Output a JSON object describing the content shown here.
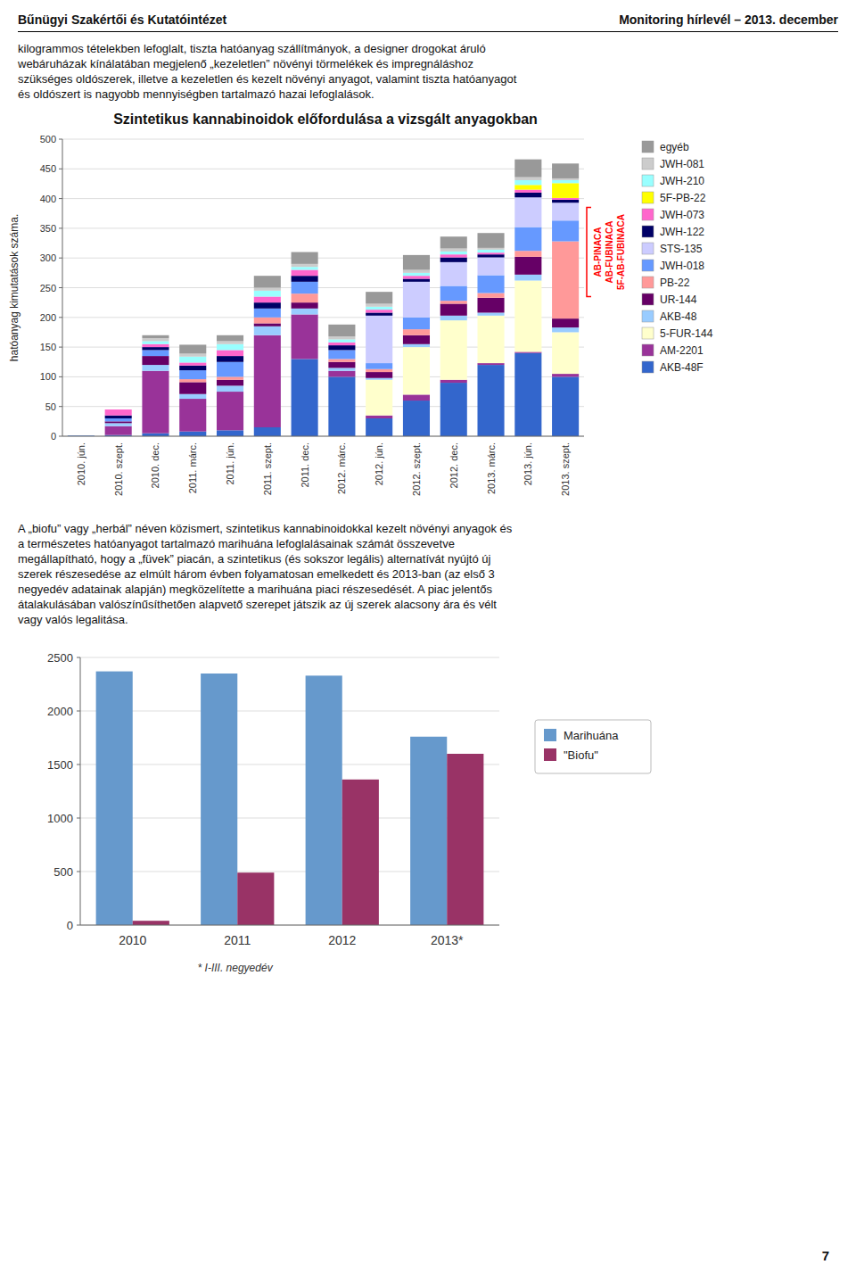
{
  "header_left": "Bűnügyi Szakértői és Kutatóintézet",
  "header_right": "Monitoring hírlevél – 2013. december",
  "body_text_lines": [
    "kilogrammos tételekben lefoglalt, tiszta hatóanyag szállítmányok, a designer drogokat áruló",
    "webáruházak kínálatában megjelenő „kezeletlen” növényi törmelékek és impregnáláshoz",
    "szükséges oldószerek, illetve a kezeletlen és kezelt növényi anyagot, valamint tiszta hatóanyagot",
    "és oldószert is nagyobb mennyiségben tartalmazó hazai lefoglalások."
  ],
  "body_text2_lines": [
    "A „biofu” vagy „herbál” néven közismert, szintetikus kannabinoidokkal kezelt növényi anyagok és",
    "a természetes hatóanyagot tartalmazó marihuána lefoglalásainak számát összevetve",
    "megállapítható, hogy a „füvek” piacán, a szintetikus (és sokszor legális) alternatívát nyújtó új",
    "szerek részesedése az elmúlt három évben folyamatosan emelkedett és 2013-ban (az első 3",
    "negyedév adatainak alapján) megközelítette a marihuána piaci részesedését. A piac jelentős",
    "átalakulásában valószínűsíthetően alapvető szerepet játszik az új szerek alacsony ára és vélt",
    "vagy valós legalitása."
  ],
  "page_number": "7",
  "chart_data": [
    {
      "type": "bar",
      "stacked": true,
      "title": "Szintetikus kannabinoidok előfordulása a vizsgált anyagokban",
      "ylabel": "hatóanyag kimutatások száma.",
      "categories": [
        "2010. jún.",
        "2010. szept.",
        "2010. dec.",
        "2011. márc.",
        "2011. jún.",
        "2011. szept.",
        "2011. dec.",
        "2012. márc.",
        "2012. jún.",
        "2012. szept.",
        "2012. dec.",
        "2013. márc.",
        "2013. jún.",
        "2013. szept."
      ],
      "series": [
        {
          "name": "AKB-48F",
          "color": "#3366CC",
          "values": [
            1,
            2,
            5,
            8,
            10,
            15,
            130,
            100,
            30,
            60,
            90,
            120,
            140,
            100
          ]
        },
        {
          "name": "AM-2201",
          "color": "#993399",
          "values": [
            0,
            15,
            105,
            55,
            65,
            155,
            75,
            10,
            5,
            10,
            5,
            3,
            2,
            5
          ]
        },
        {
          "name": "5-FUR-144",
          "color": "#FFFFCC",
          "values": [
            0,
            0,
            0,
            0,
            0,
            0,
            0,
            0,
            60,
            80,
            100,
            80,
            120,
            70
          ]
        },
        {
          "name": "AKB-48",
          "color": "#99CCFF",
          "values": [
            0,
            5,
            10,
            8,
            10,
            15,
            10,
            5,
            3,
            5,
            8,
            5,
            10,
            8
          ]
        },
        {
          "name": "UR-144",
          "color": "#660066",
          "values": [
            0,
            3,
            15,
            20,
            10,
            5,
            10,
            10,
            10,
            15,
            20,
            25,
            30,
            15
          ]
        },
        {
          "name": "PB-22",
          "color": "#FF9999",
          "values": [
            0,
            0,
            0,
            5,
            5,
            10,
            15,
            5,
            5,
            10,
            5,
            8,
            10,
            130
          ]
        },
        {
          "name": "JWH-018",
          "color": "#6699FF",
          "values": [
            0,
            5,
            10,
            15,
            25,
            15,
            20,
            15,
            10,
            20,
            25,
            30,
            40,
            35
          ]
        },
        {
          "name": "STS-135",
          "color": "#CCCCFF",
          "values": [
            0,
            0,
            0,
            0,
            0,
            0,
            0,
            0,
            80,
            60,
            40,
            30,
            50,
            30
          ]
        },
        {
          "name": "JWH-122",
          "color": "#000066",
          "values": [
            0,
            5,
            5,
            8,
            10,
            10,
            10,
            8,
            5,
            5,
            8,
            5,
            8,
            5
          ]
        },
        {
          "name": "JWH-073",
          "color": "#FF66CC",
          "values": [
            0,
            10,
            5,
            5,
            10,
            10,
            10,
            5,
            5,
            5,
            5,
            3,
            5,
            3
          ]
        },
        {
          "name": "5F-PB-22",
          "color": "#FFFF00",
          "values": [
            0,
            0,
            0,
            0,
            0,
            0,
            0,
            0,
            0,
            0,
            0,
            0,
            8,
            25
          ]
        },
        {
          "name": "JWH-210",
          "color": "#99FFFF",
          "values": [
            0,
            0,
            5,
            10,
            10,
            10,
            5,
            5,
            5,
            5,
            5,
            5,
            8,
            5
          ]
        },
        {
          "name": "JWH-081",
          "color": "#CCCCCC",
          "values": [
            0,
            0,
            5,
            5,
            5,
            5,
            5,
            5,
            5,
            5,
            5,
            3,
            5,
            3
          ]
        },
        {
          "name": "egyéb",
          "color": "#999999",
          "values": [
            0,
            0,
            5,
            15,
            10,
            20,
            20,
            20,
            20,
            25,
            20,
            25,
            30,
            25
          ]
        }
      ],
      "annotations": [
        "AB-PINACA",
        "AB-FUBINACA",
        "5F-AB-FUBINACA"
      ],
      "ylim": [
        0,
        500
      ],
      "yticks": [
        0,
        50,
        100,
        150,
        200,
        250,
        300,
        350,
        400,
        450,
        500
      ],
      "grid": true,
      "legend": "right"
    },
    {
      "type": "bar",
      "categories": [
        "2010",
        "2011",
        "2012",
        "2013*"
      ],
      "series": [
        {
          "name": "Marihuána",
          "color": "#6699CC",
          "values": [
            2370,
            2350,
            2330,
            1760
          ]
        },
        {
          "name": "\"Biofu\"",
          "color": "#993366",
          "values": [
            40,
            490,
            1360,
            1600
          ]
        }
      ],
      "note": "* I-III. negyedév",
      "ylim": [
        0,
        2500
      ],
      "yticks": [
        0,
        500,
        1000,
        1500,
        2000,
        2500
      ],
      "grid": true,
      "legend": "right"
    }
  ]
}
